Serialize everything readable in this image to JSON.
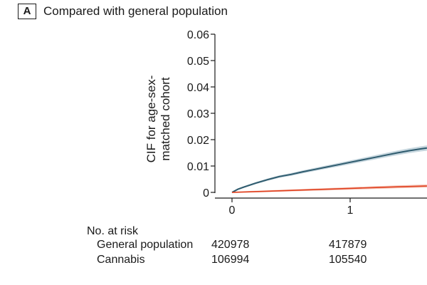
{
  "panel": {
    "letter": "A",
    "title": "Compared with general population"
  },
  "chart_data": {
    "type": "line",
    "title": "Compared with general population",
    "ylabel_line1": "CIF for age-sex-",
    "ylabel_line2": "matched cohort",
    "xlabel": "",
    "ylim": [
      0,
      0.06
    ],
    "xlim_visible": [
      0,
      1.65
    ],
    "y_ticks": [
      "0",
      "0.01",
      "0.02",
      "0.03",
      "0.04",
      "0.05",
      "0.06"
    ],
    "y_tick_values": [
      0,
      0.01,
      0.02,
      0.03,
      0.04,
      0.05,
      0.06
    ],
    "x_ticks": [
      "0",
      "1"
    ],
    "x_tick_values": [
      0,
      1
    ],
    "grid": false,
    "series": [
      {
        "color": "#2e5b6e",
        "band_color": "#b8ccd6",
        "x": [
          0,
          0.05,
          0.1,
          0.2,
          0.3,
          0.4,
          0.5,
          0.6,
          0.7,
          0.8,
          0.9,
          1.0,
          1.1,
          1.2,
          1.3,
          1.4,
          1.5,
          1.6,
          1.65
        ],
        "values": [
          0,
          0.0012,
          0.002,
          0.0035,
          0.0048,
          0.006,
          0.0068,
          0.0078,
          0.0087,
          0.0096,
          0.0105,
          0.0114,
          0.0123,
          0.0132,
          0.0141,
          0.015,
          0.0158,
          0.0165,
          0.0168
        ]
      },
      {
        "color": "#e0401f",
        "band_color": "#f3b6a6",
        "x": [
          0,
          0.2,
          0.4,
          0.6,
          0.8,
          1.0,
          1.2,
          1.4,
          1.65
        ],
        "values": [
          0,
          0.0003,
          0.0006,
          0.0009,
          0.0012,
          0.0015,
          0.0018,
          0.0021,
          0.0024
        ]
      }
    ]
  },
  "risk_table": {
    "header": "No. at risk",
    "rows": [
      {
        "label": "General population",
        "values": [
          "420978",
          "417879"
        ]
      },
      {
        "label": "Cannabis",
        "values": [
          "106994",
          "105540"
        ]
      }
    ]
  }
}
